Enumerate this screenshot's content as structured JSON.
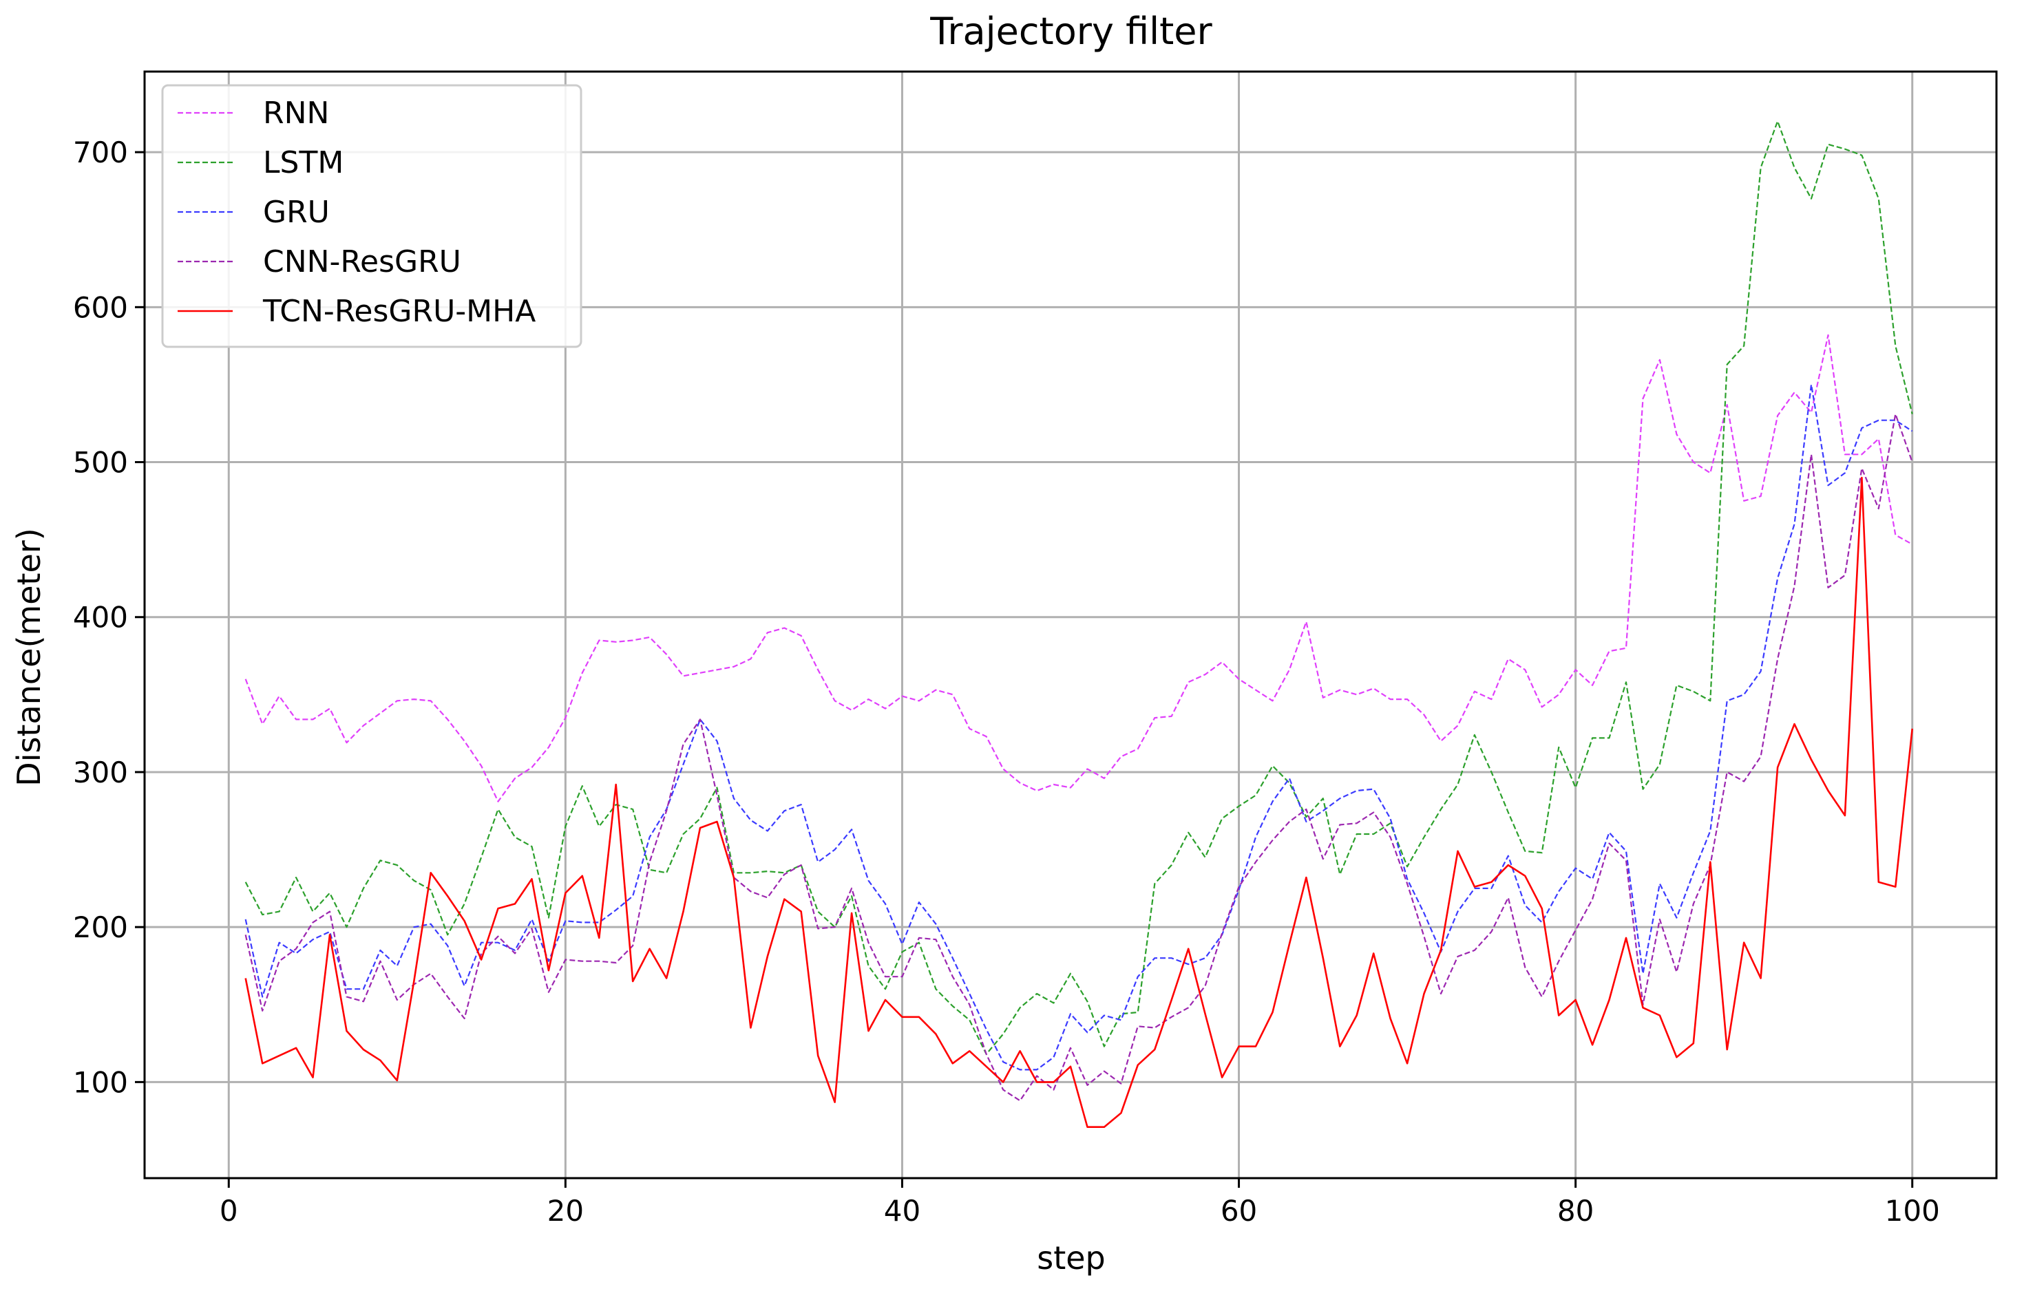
{
  "chart_data": {
    "type": "line",
    "title": "Trajectory filter",
    "xlabel": "step",
    "ylabel": "Distance(meter)",
    "xlim": [
      -5,
      105
    ],
    "ylim": [
      38,
      752
    ],
    "xticks": [
      0,
      20,
      40,
      60,
      80,
      100
    ],
    "yticks": [
      100,
      200,
      300,
      400,
      500,
      600,
      700
    ],
    "grid": true,
    "legend_position": "top-left",
    "series": [
      {
        "name": "RNN",
        "color": "#e040fb",
        "dashed": true,
        "x": [
          1,
          2,
          3,
          4,
          5,
          6,
          7,
          8,
          9,
          10,
          11,
          12,
          13,
          14,
          15,
          16,
          17,
          18,
          19,
          20,
          21,
          22,
          23,
          24,
          25,
          26,
          27,
          28,
          29,
          30,
          31,
          32,
          33,
          34,
          35,
          36,
          37,
          38,
          39,
          40,
          41,
          42,
          43,
          44,
          45,
          46,
          47,
          48,
          49,
          50,
          51,
          52,
          53,
          54,
          55,
          56,
          57,
          58,
          59,
          60,
          61,
          62,
          63,
          64,
          65,
          66,
          67,
          68,
          69,
          70,
          71,
          72,
          73,
          74,
          75,
          76,
          77,
          78,
          79,
          80,
          81,
          82,
          83,
          84,
          85,
          86,
          87,
          88,
          89,
          90,
          91,
          92,
          93,
          94,
          95,
          96,
          97,
          98,
          99,
          100
        ],
        "y": [
          360,
          331,
          349,
          334,
          334,
          341,
          319,
          330,
          338,
          346,
          347,
          346,
          334,
          320,
          304,
          281,
          296,
          303,
          316,
          335,
          364,
          385,
          384,
          385,
          387,
          376,
          362,
          364,
          366,
          368,
          373,
          390,
          393,
          388,
          366,
          346,
          340,
          347,
          341,
          349,
          346,
          353,
          350,
          328,
          323,
          302,
          293,
          288,
          292,
          290,
          302,
          296,
          310,
          315,
          335,
          336,
          358,
          363,
          371,
          360,
          353,
          346,
          366,
          397,
          348,
          353,
          350,
          354,
          347,
          347,
          337,
          320,
          330,
          352,
          347,
          373,
          366,
          342,
          350,
          366,
          356,
          378,
          380,
          541,
          566,
          518,
          500,
          493,
          537,
          475,
          478,
          530,
          545,
          532,
          582,
          505,
          505,
          515,
          453,
          447
        ]
      },
      {
        "name": "LSTM",
        "color": "#2ca02c",
        "dashed": true,
        "x": [
          1,
          2,
          3,
          4,
          5,
          6,
          7,
          8,
          9,
          10,
          11,
          12,
          13,
          14,
          15,
          16,
          17,
          18,
          19,
          20,
          21,
          22,
          23,
          24,
          25,
          26,
          27,
          28,
          29,
          30,
          31,
          32,
          33,
          34,
          35,
          36,
          37,
          38,
          39,
          40,
          41,
          42,
          43,
          44,
          45,
          46,
          47,
          48,
          49,
          50,
          51,
          52,
          53,
          54,
          55,
          56,
          57,
          58,
          59,
          60,
          61,
          62,
          63,
          64,
          65,
          66,
          67,
          68,
          69,
          70,
          71,
          72,
          73,
          74,
          75,
          76,
          77,
          78,
          79,
          80,
          81,
          82,
          83,
          84,
          85,
          86,
          87,
          88,
          89,
          90,
          91,
          92,
          93,
          94,
          95,
          96,
          97,
          98,
          99,
          100
        ],
        "y": [
          229,
          208,
          210,
          232,
          210,
          222,
          200,
          225,
          243,
          240,
          230,
          224,
          195,
          215,
          245,
          276,
          258,
          252,
          206,
          265,
          291,
          265,
          279,
          276,
          237,
          235,
          260,
          270,
          290,
          235,
          235,
          236,
          235,
          240,
          210,
          200,
          220,
          175,
          160,
          184,
          190,
          160,
          149,
          140,
          118,
          131,
          148,
          157,
          151,
          170,
          152,
          123,
          144,
          145,
          228,
          240,
          261,
          245,
          270,
          278,
          285,
          304,
          293,
          271,
          283,
          234,
          260,
          260,
          267,
          239,
          258,
          276,
          292,
          324,
          300,
          274,
          249,
          248,
          316,
          290,
          322,
          322,
          358,
          289,
          305,
          356,
          352,
          346,
          563,
          575,
          690,
          720,
          690,
          670,
          705,
          702,
          698,
          670,
          575,
          531
        ]
      },
      {
        "name": "GRU",
        "color": "#3b3bff",
        "dashed": true,
        "x": [
          1,
          2,
          3,
          4,
          5,
          6,
          7,
          8,
          9,
          10,
          11,
          12,
          13,
          14,
          15,
          16,
          17,
          18,
          19,
          20,
          21,
          22,
          23,
          24,
          25,
          26,
          27,
          28,
          29,
          30,
          31,
          32,
          33,
          34,
          35,
          36,
          37,
          38,
          39,
          40,
          41,
          42,
          43,
          44,
          45,
          46,
          47,
          48,
          49,
          50,
          51,
          52,
          53,
          54,
          55,
          56,
          57,
          58,
          59,
          60,
          61,
          62,
          63,
          64,
          65,
          66,
          67,
          68,
          69,
          70,
          71,
          72,
          73,
          74,
          75,
          76,
          77,
          78,
          79,
          80,
          81,
          82,
          83,
          84,
          85,
          86,
          87,
          88,
          89,
          90,
          91,
          92,
          93,
          94,
          95,
          96,
          97,
          98,
          99,
          100
        ],
        "y": [
          205,
          155,
          190,
          183,
          192,
          197,
          160,
          160,
          185,
          175,
          200,
          202,
          188,
          162,
          190,
          190,
          185,
          205,
          178,
          204,
          203,
          203,
          211,
          220,
          258,
          276,
          305,
          334,
          320,
          283,
          269,
          262,
          275,
          279,
          242,
          250,
          263,
          230,
          215,
          189,
          216,
          202,
          180,
          157,
          134,
          113,
          108,
          108,
          116,
          144,
          132,
          143,
          140,
          168,
          180,
          180,
          176,
          180,
          195,
          224,
          258,
          281,
          296,
          268,
          275,
          283,
          288,
          289,
          270,
          231,
          209,
          184,
          210,
          225,
          225,
          246,
          214,
          203,
          223,
          238,
          231,
          261,
          249,
          170,
          228,
          206,
          235,
          262,
          346,
          350,
          365,
          425,
          460,
          550,
          485,
          493,
          522,
          527,
          527,
          520
        ]
      },
      {
        "name": "CNN-ResGRU",
        "color": "#9c27b0",
        "dashed": true,
        "x": [
          1,
          2,
          3,
          4,
          5,
          6,
          7,
          8,
          9,
          10,
          11,
          12,
          13,
          14,
          15,
          16,
          17,
          18,
          19,
          20,
          21,
          22,
          23,
          24,
          25,
          26,
          27,
          28,
          29,
          30,
          31,
          32,
          33,
          34,
          35,
          36,
          37,
          38,
          39,
          40,
          41,
          42,
          43,
          44,
          45,
          46,
          47,
          48,
          49,
          50,
          51,
          52,
          53,
          54,
          55,
          56,
          57,
          58,
          59,
          60,
          61,
          62,
          63,
          64,
          65,
          66,
          67,
          68,
          69,
          70,
          71,
          72,
          73,
          74,
          75,
          76,
          77,
          78,
          79,
          80,
          81,
          82,
          83,
          84,
          85,
          86,
          87,
          88,
          89,
          90,
          91,
          92,
          93,
          94,
          95,
          96,
          97,
          98,
          99,
          100
        ],
        "y": [
          195,
          146,
          178,
          186,
          203,
          210,
          155,
          152,
          178,
          153,
          163,
          170,
          155,
          141,
          183,
          194,
          183,
          199,
          158,
          179,
          178,
          178,
          177,
          188,
          242,
          275,
          318,
          334,
          285,
          232,
          223,
          219,
          234,
          240,
          199,
          200,
          225,
          190,
          168,
          168,
          193,
          192,
          168,
          150,
          118,
          95,
          88,
          104,
          95,
          122,
          98,
          107,
          99,
          136,
          135,
          142,
          148,
          162,
          196,
          226,
          242,
          256,
          268,
          276,
          244,
          266,
          267,
          274,
          258,
          228,
          194,
          157,
          181,
          185,
          197,
          219,
          174,
          155,
          178,
          198,
          218,
          254,
          243,
          150,
          205,
          171,
          215,
          240,
          300,
          294,
          310,
          373,
          420,
          505,
          419,
          427,
          496,
          470,
          531,
          500
        ]
      },
      {
        "name": "TCN-ResGRU-MHA",
        "color": "#ff0000",
        "dashed": false,
        "x": [
          1,
          2,
          3,
          4,
          5,
          6,
          7,
          8,
          9,
          10,
          11,
          12,
          13,
          14,
          15,
          16,
          17,
          18,
          19,
          20,
          21,
          22,
          23,
          24,
          25,
          26,
          27,
          28,
          29,
          30,
          31,
          32,
          33,
          34,
          35,
          36,
          37,
          38,
          39,
          40,
          41,
          42,
          43,
          44,
          45,
          46,
          47,
          48,
          49,
          50,
          51,
          52,
          53,
          54,
          55,
          56,
          57,
          58,
          59,
          60,
          61,
          62,
          63,
          64,
          65,
          66,
          67,
          68,
          69,
          70,
          71,
          72,
          73,
          74,
          75,
          76,
          77,
          78,
          79,
          80,
          81,
          82,
          83,
          84,
          85,
          86,
          87,
          88,
          89,
          90,
          91,
          92,
          93,
          94,
          95,
          96,
          97,
          98,
          99,
          100
        ],
        "y": [
          167,
          112,
          117,
          122,
          103,
          195,
          133,
          121,
          114,
          101,
          165,
          235,
          220,
          204,
          179,
          212,
          215,
          231,
          172,
          222,
          233,
          193,
          292,
          165,
          186,
          167,
          210,
          264,
          268,
          232,
          135,
          181,
          218,
          210,
          117,
          87,
          209,
          133,
          153,
          142,
          142,
          131,
          112,
          120,
          110,
          100,
          120,
          100,
          100,
          110,
          71,
          71,
          80,
          111,
          121,
          153,
          186,
          144,
          103,
          123,
          123,
          145,
          189,
          232,
          180,
          123,
          143,
          183,
          141,
          112,
          157,
          185,
          249,
          226,
          229,
          240,
          233,
          212,
          143,
          153,
          124,
          153,
          193,
          148,
          143,
          116,
          125,
          242,
          121,
          190,
          167,
          303,
          331,
          308,
          288,
          272,
          490,
          229,
          226,
          328
        ]
      }
    ]
  }
}
